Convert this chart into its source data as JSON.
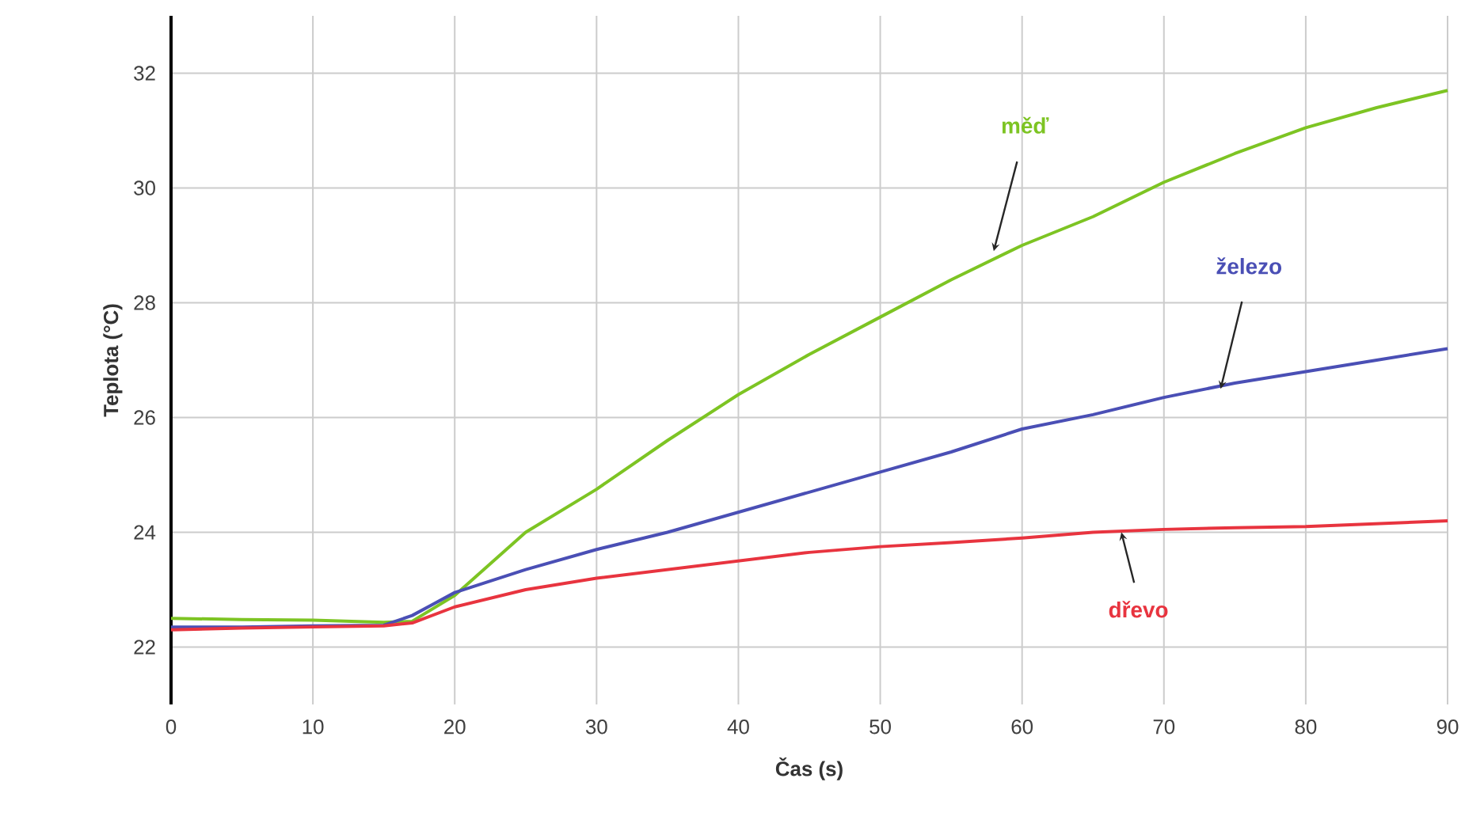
{
  "chart_data": {
    "type": "line",
    "xlabel": "Čas (s)",
    "ylabel": "Teplota (°C)",
    "xlim": [
      0,
      90
    ],
    "xticks": [
      0,
      10,
      20,
      30,
      40,
      50,
      60,
      70,
      80,
      90
    ],
    "ylim": [
      21,
      33
    ],
    "yticks": [
      22,
      24,
      26,
      28,
      30,
      32
    ],
    "grid": true,
    "line_style": "solid",
    "series": [
      {
        "color": "#7dc423",
        "x": [
          0,
          5,
          10,
          15,
          17,
          20,
          25,
          30,
          35,
          40,
          45,
          50,
          55,
          60,
          65,
          70,
          75,
          80,
          85,
          90
        ],
        "values": [
          22.5,
          22.48,
          22.47,
          22.43,
          22.45,
          22.9,
          24.0,
          24.75,
          25.6,
          26.4,
          27.1,
          27.75,
          28.4,
          29.0,
          29.5,
          30.1,
          30.6,
          31.05,
          31.4,
          31.7
        ]
      },
      {
        "color": "#4a4fb5",
        "x": [
          0,
          5,
          10,
          15,
          17,
          20,
          25,
          30,
          35,
          40,
          45,
          50,
          55,
          60,
          65,
          70,
          75,
          80,
          85,
          90
        ],
        "values": [
          22.35,
          22.35,
          22.37,
          22.38,
          22.55,
          22.95,
          23.35,
          23.7,
          24.0,
          24.35,
          24.7,
          25.05,
          25.4,
          25.8,
          26.05,
          26.35,
          26.6,
          26.8,
          27.0,
          27.2
        ]
      },
      {
        "color": "#e8343f",
        "x": [
          0,
          5,
          10,
          15,
          17,
          20,
          25,
          30,
          35,
          40,
          45,
          50,
          55,
          60,
          65,
          70,
          75,
          80,
          85,
          90
        ],
        "values": [
          22.3,
          22.33,
          22.35,
          22.37,
          22.42,
          22.7,
          23.0,
          23.2,
          23.35,
          23.5,
          23.65,
          23.75,
          23.82,
          23.9,
          24.0,
          24.05,
          24.08,
          24.1,
          24.15,
          24.2
        ]
      }
    ],
    "annotations": [
      {
        "text": "měď",
        "x": 58,
        "y": 28.9
      },
      {
        "text": "železo",
        "x": 74,
        "y": 26.5
      },
      {
        "text": "dřevo",
        "x": 67,
        "y": 24.0
      }
    ]
  }
}
